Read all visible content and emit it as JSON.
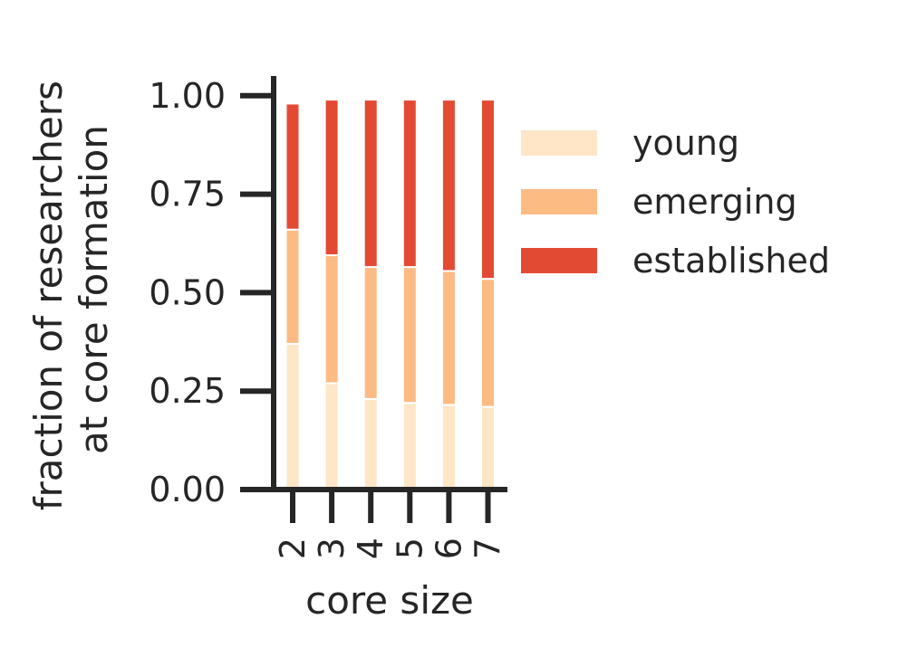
{
  "chart_data": {
    "type": "bar",
    "stacked": true,
    "categories": [
      "2",
      "3",
      "4",
      "5",
      "6",
      "7"
    ],
    "series": [
      {
        "name": "young",
        "color": "#fee6c7",
        "values": [
          0.37,
          0.27,
          0.23,
          0.22,
          0.215,
          0.21
        ]
      },
      {
        "name": "emerging",
        "color": "#fdbb84",
        "values": [
          0.29,
          0.325,
          0.335,
          0.345,
          0.34,
          0.325
        ]
      },
      {
        "name": "established",
        "color": "#e34a33",
        "values": [
          0.32,
          0.395,
          0.425,
          0.425,
          0.435,
          0.455
        ]
      }
    ],
    "xlabel": "core size",
    "ylabel_lines": [
      "fraction of researchers",
      "at core formation"
    ],
    "ylim": [
      0,
      1.05
    ],
    "yticks": [
      "0.00",
      "0.25",
      "0.50",
      "0.75",
      "1.00"
    ],
    "grid": false,
    "legend_position": "right"
  }
}
